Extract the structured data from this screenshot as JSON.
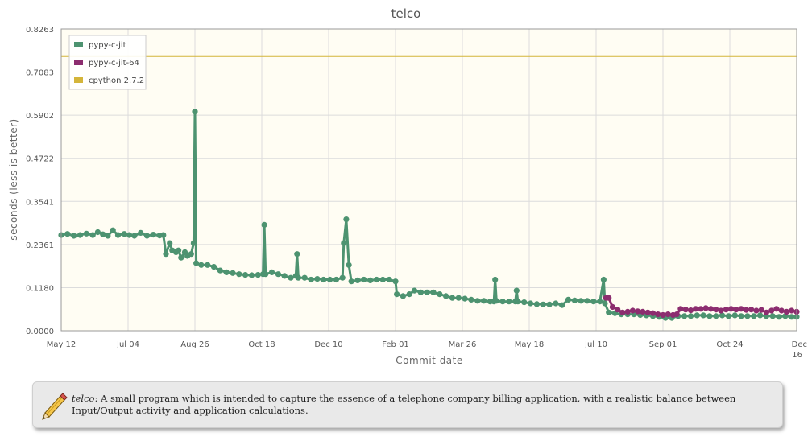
{
  "chart_data": {
    "type": "line",
    "title": "telco",
    "xlabel": "Commit date",
    "ylabel": "seconds (less is better)",
    "ylim": [
      0,
      0.8263
    ],
    "yticks": [
      "0.0000",
      "0.1180",
      "0.2361",
      "0.3541",
      "0.4722",
      "0.5902",
      "0.7083",
      "0.8263"
    ],
    "xlim": [
      "2010-05-12",
      "2011-12-16"
    ],
    "xticks": [
      {
        "date": "2010-05-12",
        "label": "May 12"
      },
      {
        "date": "2010-07-04",
        "label": "Jul 04"
      },
      {
        "date": "2010-08-26",
        "label": "Aug 26"
      },
      {
        "date": "2010-10-18",
        "label": "Oct 18"
      },
      {
        "date": "2010-12-10",
        "label": "Dec 10"
      },
      {
        "date": "2011-02-01",
        "label": "Feb 01"
      },
      {
        "date": "2011-03-26",
        "label": "Mar 26"
      },
      {
        "date": "2011-05-18",
        "label": "May 18"
      },
      {
        "date": "2011-07-10",
        "label": "Jul 10"
      },
      {
        "date": "2011-09-01",
        "label": "Sep 01"
      },
      {
        "date": "2011-10-24",
        "label": "Oct 24"
      },
      {
        "date": "2011-12-16",
        "label": "Dec 16"
      }
    ],
    "grid": true,
    "legend_position": "top-left",
    "series": [
      {
        "name": "pypy-c-jit",
        "color": "#4d9370",
        "points": [
          [
            "2010-05-12",
            0.262
          ],
          [
            "2010-05-17",
            0.265
          ],
          [
            "2010-05-22",
            0.26
          ],
          [
            "2010-05-27",
            0.262
          ],
          [
            "2010-06-01",
            0.266
          ],
          [
            "2010-06-06",
            0.262
          ],
          [
            "2010-06-10",
            0.27
          ],
          [
            "2010-06-14",
            0.264
          ],
          [
            "2010-06-18",
            0.26
          ],
          [
            "2010-06-22",
            0.275
          ],
          [
            "2010-06-26",
            0.262
          ],
          [
            "2010-07-01",
            0.265
          ],
          [
            "2010-07-05",
            0.262
          ],
          [
            "2010-07-09",
            0.26
          ],
          [
            "2010-07-14",
            0.268
          ],
          [
            "2010-07-19",
            0.26
          ],
          [
            "2010-07-24",
            0.263
          ],
          [
            "2010-07-29",
            0.261
          ],
          [
            "2010-08-01",
            0.262
          ],
          [
            "2010-08-03",
            0.21
          ],
          [
            "2010-08-06",
            0.24
          ],
          [
            "2010-08-08",
            0.22
          ],
          [
            "2010-08-11",
            0.215
          ],
          [
            "2010-08-13",
            0.22
          ],
          [
            "2010-08-15",
            0.2
          ],
          [
            "2010-08-18",
            0.215
          ],
          [
            "2010-08-20",
            0.205
          ],
          [
            "2010-08-23",
            0.21
          ],
          [
            "2010-08-25",
            0.24
          ],
          [
            "2010-08-26",
            0.6
          ],
          [
            "2010-08-27",
            0.185
          ],
          [
            "2010-08-31",
            0.18
          ],
          [
            "2010-09-05",
            0.18
          ],
          [
            "2010-09-10",
            0.175
          ],
          [
            "2010-09-15",
            0.165
          ],
          [
            "2010-09-20",
            0.16
          ],
          [
            "2010-09-25",
            0.158
          ],
          [
            "2010-09-30",
            0.155
          ],
          [
            "2010-10-05",
            0.153
          ],
          [
            "2010-10-10",
            0.152
          ],
          [
            "2010-10-15",
            0.153
          ],
          [
            "2010-10-19",
            0.155
          ],
          [
            "2010-10-20",
            0.29
          ],
          [
            "2010-10-21",
            0.155
          ],
          [
            "2010-10-26",
            0.16
          ],
          [
            "2010-10-31",
            0.155
          ],
          [
            "2010-11-05",
            0.15
          ],
          [
            "2010-11-10",
            0.145
          ],
          [
            "2010-11-14",
            0.15
          ],
          [
            "2010-11-15",
            0.21
          ],
          [
            "2010-11-16",
            0.145
          ],
          [
            "2010-11-21",
            0.145
          ],
          [
            "2010-11-26",
            0.14
          ],
          [
            "2010-12-01",
            0.142
          ],
          [
            "2010-12-06",
            0.14
          ],
          [
            "2010-12-11",
            0.14
          ],
          [
            "2010-12-16",
            0.14
          ],
          [
            "2010-12-21",
            0.145
          ],
          [
            "2010-12-22",
            0.24
          ],
          [
            "2010-12-24",
            0.305
          ],
          [
            "2010-12-26",
            0.18
          ],
          [
            "2010-12-28",
            0.135
          ],
          [
            "2011-01-02",
            0.138
          ],
          [
            "2011-01-07",
            0.14
          ],
          [
            "2011-01-12",
            0.138
          ],
          [
            "2011-01-17",
            0.14
          ],
          [
            "2011-01-22",
            0.14
          ],
          [
            "2011-01-27",
            0.14
          ],
          [
            "2011-02-01",
            0.135
          ],
          [
            "2011-02-02",
            0.1
          ],
          [
            "2011-02-07",
            0.095
          ],
          [
            "2011-02-12",
            0.1
          ],
          [
            "2011-02-16",
            0.11
          ],
          [
            "2011-02-21",
            0.105
          ],
          [
            "2011-02-26",
            0.105
          ],
          [
            "2011-03-03",
            0.105
          ],
          [
            "2011-03-08",
            0.1
          ],
          [
            "2011-03-13",
            0.095
          ],
          [
            "2011-03-18",
            0.09
          ],
          [
            "2011-03-23",
            0.09
          ],
          [
            "2011-03-28",
            0.088
          ],
          [
            "2011-04-02",
            0.085
          ],
          [
            "2011-04-07",
            0.082
          ],
          [
            "2011-04-12",
            0.082
          ],
          [
            "2011-04-17",
            0.08
          ],
          [
            "2011-04-20",
            0.08
          ],
          [
            "2011-04-21",
            0.14
          ],
          [
            "2011-04-22",
            0.082
          ],
          [
            "2011-04-27",
            0.08
          ],
          [
            "2011-05-02",
            0.08
          ],
          [
            "2011-05-07",
            0.08
          ],
          [
            "2011-05-08",
            0.11
          ],
          [
            "2011-05-09",
            0.08
          ],
          [
            "2011-05-14",
            0.078
          ],
          [
            "2011-05-19",
            0.075
          ],
          [
            "2011-05-24",
            0.073
          ],
          [
            "2011-05-29",
            0.072
          ],
          [
            "2011-06-03",
            0.072
          ],
          [
            "2011-06-08",
            0.075
          ],
          [
            "2011-06-13",
            0.07
          ],
          [
            "2011-06-18",
            0.085
          ],
          [
            "2011-06-23",
            0.083
          ],
          [
            "2011-06-28",
            0.082
          ],
          [
            "2011-07-03",
            0.082
          ],
          [
            "2011-07-08",
            0.08
          ],
          [
            "2011-07-13",
            0.08
          ],
          [
            "2011-07-16",
            0.14
          ],
          [
            "2011-07-17",
            0.075
          ],
          [
            "2011-07-20",
            0.05
          ],
          [
            "2011-07-25",
            0.048
          ],
          [
            "2011-07-30",
            0.045
          ],
          [
            "2011-08-04",
            0.045
          ],
          [
            "2011-08-09",
            0.045
          ],
          [
            "2011-08-14",
            0.043
          ],
          [
            "2011-08-19",
            0.042
          ],
          [
            "2011-08-24",
            0.04
          ],
          [
            "2011-08-29",
            0.038
          ],
          [
            "2011-09-03",
            0.035
          ],
          [
            "2011-09-08",
            0.035
          ],
          [
            "2011-09-13",
            0.04
          ],
          [
            "2011-09-18",
            0.04
          ],
          [
            "2011-09-23",
            0.04
          ],
          [
            "2011-09-28",
            0.042
          ],
          [
            "2011-10-03",
            0.042
          ],
          [
            "2011-10-08",
            0.04
          ],
          [
            "2011-10-13",
            0.04
          ],
          [
            "2011-10-18",
            0.042
          ],
          [
            "2011-10-23",
            0.04
          ],
          [
            "2011-10-28",
            0.042
          ],
          [
            "2011-11-02",
            0.04
          ],
          [
            "2011-11-07",
            0.04
          ],
          [
            "2011-11-12",
            0.04
          ],
          [
            "2011-11-17",
            0.042
          ],
          [
            "2011-11-22",
            0.04
          ],
          [
            "2011-11-27",
            0.04
          ],
          [
            "2011-12-02",
            0.038
          ],
          [
            "2011-12-07",
            0.04
          ],
          [
            "2011-12-12",
            0.038
          ],
          [
            "2011-12-16",
            0.038
          ]
        ]
      },
      {
        "name": "pypy-c-jit-64",
        "color": "#8c2d6f",
        "points": [
          [
            "2011-07-18",
            0.09
          ],
          [
            "2011-07-20",
            0.09
          ],
          [
            "2011-07-23",
            0.065
          ],
          [
            "2011-07-27",
            0.058
          ],
          [
            "2011-07-31",
            0.05
          ],
          [
            "2011-08-04",
            0.052
          ],
          [
            "2011-08-08",
            0.055
          ],
          [
            "2011-08-12",
            0.053
          ],
          [
            "2011-08-16",
            0.052
          ],
          [
            "2011-08-20",
            0.05
          ],
          [
            "2011-08-24",
            0.048
          ],
          [
            "2011-08-28",
            0.045
          ],
          [
            "2011-09-01",
            0.043
          ],
          [
            "2011-09-05",
            0.045
          ],
          [
            "2011-09-09",
            0.043
          ],
          [
            "2011-09-12",
            0.045
          ],
          [
            "2011-09-15",
            0.06
          ],
          [
            "2011-09-19",
            0.058
          ],
          [
            "2011-09-23",
            0.056
          ],
          [
            "2011-09-27",
            0.06
          ],
          [
            "2011-10-01",
            0.06
          ],
          [
            "2011-10-05",
            0.062
          ],
          [
            "2011-10-09",
            0.06
          ],
          [
            "2011-10-13",
            0.058
          ],
          [
            "2011-10-17",
            0.055
          ],
          [
            "2011-10-21",
            0.058
          ],
          [
            "2011-10-25",
            0.06
          ],
          [
            "2011-10-29",
            0.058
          ],
          [
            "2011-11-02",
            0.06
          ],
          [
            "2011-11-06",
            0.057
          ],
          [
            "2011-11-10",
            0.058
          ],
          [
            "2011-11-14",
            0.055
          ],
          [
            "2011-11-18",
            0.057
          ],
          [
            "2011-11-22",
            0.05
          ],
          [
            "2011-11-26",
            0.055
          ],
          [
            "2011-11-30",
            0.06
          ],
          [
            "2011-12-04",
            0.055
          ],
          [
            "2011-12-08",
            0.052
          ],
          [
            "2011-12-12",
            0.055
          ],
          [
            "2011-12-16",
            0.052
          ]
        ]
      },
      {
        "name": "cpython 2.7.2",
        "color": "#d4b53a",
        "points": [
          [
            "2010-05-12",
            0.752
          ],
          [
            "2011-12-16",
            0.752
          ]
        ]
      }
    ]
  },
  "description": {
    "benchmark": "telco",
    "text": ": A small program which is intended to capture the essence of a telephone company billing application, with a realistic balance between Input/Output activity and application calculations."
  }
}
